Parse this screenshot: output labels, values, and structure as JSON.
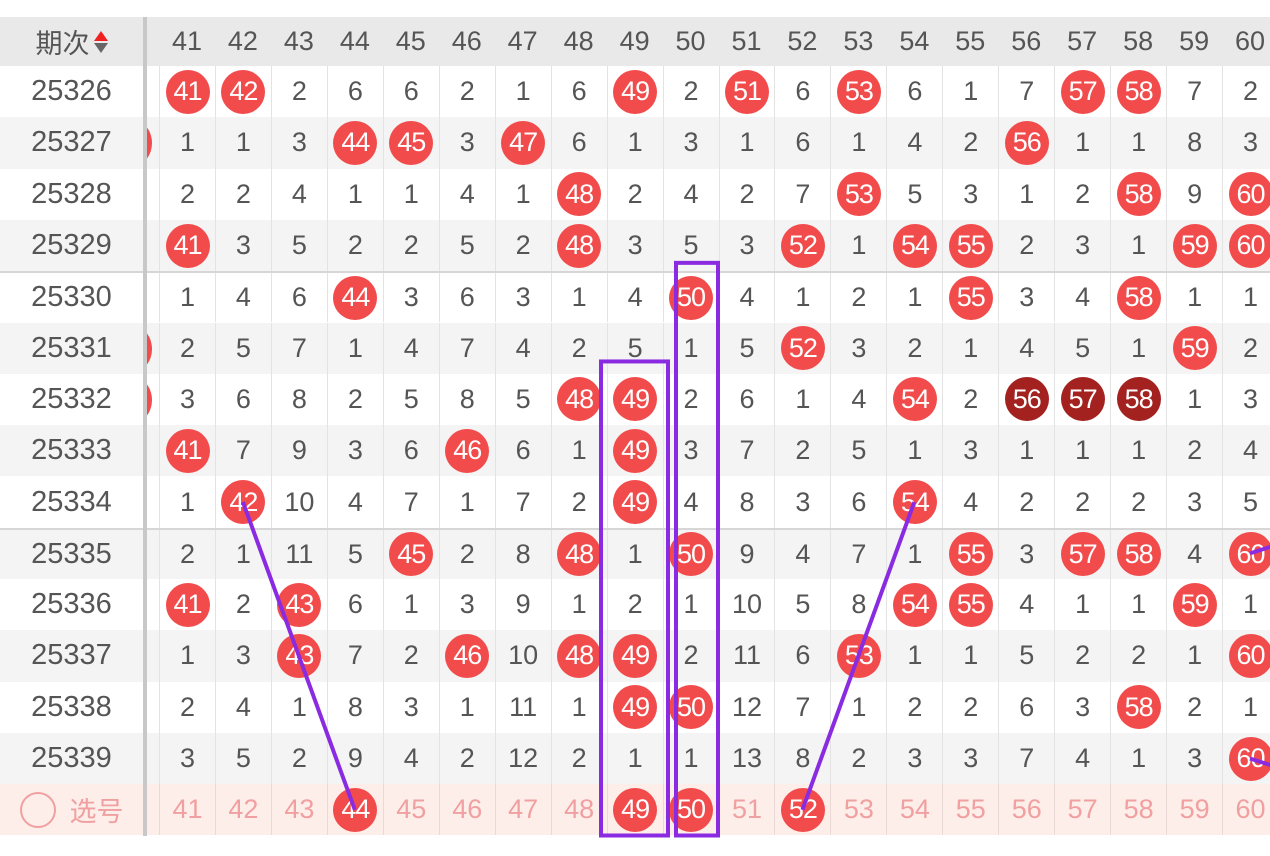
{
  "header": {
    "label": "期次",
    "sort_icon": "sort-up-down-icon",
    "columns": [
      "41",
      "42",
      "43",
      "44",
      "45",
      "46",
      "47",
      "48",
      "49",
      "50",
      "51",
      "52",
      "53",
      "54",
      "55",
      "56",
      "57",
      "58",
      "59",
      "60"
    ]
  },
  "colors": {
    "hit": "#f24b4b",
    "repeat_hit": "#a3221f",
    "line": "#8a2be2"
  },
  "rows": [
    {
      "issue": "25326",
      "cells": [
        "41",
        "42",
        "2",
        "6",
        "6",
        "2",
        "1",
        "6",
        "49",
        "2",
        "51",
        "6",
        "53",
        "6",
        "1",
        "7",
        "57",
        "58",
        "7",
        "2"
      ],
      "hits": [
        "41",
        "42",
        "49",
        "51",
        "53",
        "57",
        "58"
      ],
      "dark": []
    },
    {
      "issue": "25327",
      "cells": [
        "1",
        "1",
        "3",
        "44",
        "45",
        "3",
        "47",
        "6",
        "1",
        "3",
        "1",
        "6",
        "1",
        "4",
        "2",
        "56",
        "1",
        "1",
        "8",
        "3"
      ],
      "hits": [
        "44",
        "45",
        "47",
        "56"
      ],
      "dark": [],
      "prev_hit": true
    },
    {
      "issue": "25328",
      "cells": [
        "2",
        "2",
        "4",
        "1",
        "1",
        "4",
        "1",
        "48",
        "2",
        "4",
        "2",
        "7",
        "53",
        "5",
        "3",
        "1",
        "2",
        "58",
        "9",
        "60"
      ],
      "hits": [
        "48",
        "53",
        "58",
        "60"
      ],
      "dark": []
    },
    {
      "issue": "25329",
      "cells": [
        "41",
        "3",
        "5",
        "2",
        "2",
        "5",
        "2",
        "48",
        "3",
        "5",
        "3",
        "52",
        "1",
        "54",
        "55",
        "2",
        "3",
        "1",
        "59",
        "60"
      ],
      "hits": [
        "41",
        "48",
        "52",
        "54",
        "55",
        "59",
        "60"
      ],
      "dark": []
    },
    {
      "issue": "25330",
      "cells": [
        "1",
        "4",
        "6",
        "44",
        "3",
        "6",
        "3",
        "1",
        "4",
        "50",
        "4",
        "1",
        "2",
        "1",
        "55",
        "3",
        "4",
        "58",
        "1",
        "1"
      ],
      "hits": [
        "44",
        "50",
        "55",
        "58"
      ],
      "dark": []
    },
    {
      "issue": "25331",
      "cells": [
        "2",
        "5",
        "7",
        "1",
        "4",
        "7",
        "4",
        "2",
        "5",
        "1",
        "5",
        "52",
        "3",
        "2",
        "1",
        "4",
        "5",
        "1",
        "59",
        "2"
      ],
      "hits": [
        "52",
        "59"
      ],
      "dark": [],
      "prev_hit": true
    },
    {
      "issue": "25332",
      "cells": [
        "3",
        "6",
        "8",
        "2",
        "5",
        "8",
        "5",
        "48",
        "49",
        "2",
        "6",
        "1",
        "4",
        "54",
        "2",
        "56",
        "57",
        "58",
        "1",
        "3"
      ],
      "hits": [
        "48",
        "49",
        "54",
        "56",
        "57",
        "58"
      ],
      "dark": [
        "56",
        "57",
        "58"
      ],
      "prev_hit": true
    },
    {
      "issue": "25333",
      "cells": [
        "41",
        "7",
        "9",
        "3",
        "6",
        "46",
        "6",
        "1",
        "49",
        "3",
        "7",
        "2",
        "5",
        "1",
        "3",
        "1",
        "1",
        "1",
        "2",
        "4"
      ],
      "hits": [
        "41",
        "46",
        "49"
      ],
      "dark": []
    },
    {
      "issue": "25334",
      "cells": [
        "1",
        "42",
        "10",
        "4",
        "7",
        "1",
        "7",
        "2",
        "49",
        "4",
        "8",
        "3",
        "6",
        "54",
        "4",
        "2",
        "2",
        "2",
        "3",
        "5"
      ],
      "hits": [
        "42",
        "49",
        "54"
      ],
      "dark": []
    },
    {
      "issue": "25335",
      "cells": [
        "2",
        "1",
        "11",
        "5",
        "45",
        "2",
        "8",
        "48",
        "1",
        "50",
        "9",
        "4",
        "7",
        "1",
        "55",
        "3",
        "57",
        "58",
        "4",
        "60"
      ],
      "hits": [
        "45",
        "48",
        "50",
        "55",
        "57",
        "58",
        "60"
      ],
      "dark": []
    },
    {
      "issue": "25336",
      "cells": [
        "41",
        "2",
        "43",
        "6",
        "1",
        "3",
        "9",
        "1",
        "2",
        "1",
        "10",
        "5",
        "8",
        "54",
        "55",
        "4",
        "1",
        "1",
        "59",
        "1"
      ],
      "hits": [
        "41",
        "43",
        "54",
        "55",
        "59"
      ],
      "dark": []
    },
    {
      "issue": "25337",
      "cells": [
        "1",
        "3",
        "43",
        "7",
        "2",
        "46",
        "10",
        "48",
        "49",
        "2",
        "11",
        "6",
        "53",
        "1",
        "1",
        "5",
        "2",
        "2",
        "1",
        "60"
      ],
      "hits": [
        "43",
        "46",
        "48",
        "49",
        "53",
        "60"
      ],
      "dark": []
    },
    {
      "issue": "25338",
      "cells": [
        "2",
        "4",
        "1",
        "8",
        "3",
        "1",
        "11",
        "1",
        "49",
        "50",
        "12",
        "7",
        "1",
        "2",
        "2",
        "6",
        "3",
        "58",
        "2",
        "1"
      ],
      "hits": [
        "49",
        "50",
        "58"
      ],
      "dark": []
    },
    {
      "issue": "25339",
      "cells": [
        "3",
        "5",
        "2",
        "9",
        "4",
        "2",
        "12",
        "2",
        "1",
        "1",
        "13",
        "8",
        "2",
        "3",
        "3",
        "7",
        "4",
        "1",
        "3",
        "60"
      ],
      "hits": [
        "60"
      ],
      "dark": []
    }
  ],
  "select_row": {
    "label": "选号",
    "cells": [
      "41",
      "42",
      "43",
      "44",
      "45",
      "46",
      "47",
      "48",
      "49",
      "50",
      "51",
      "52",
      "53",
      "54",
      "55",
      "56",
      "57",
      "58",
      "59",
      "60"
    ],
    "selected": [
      "44",
      "49",
      "50",
      "52"
    ]
  }
}
